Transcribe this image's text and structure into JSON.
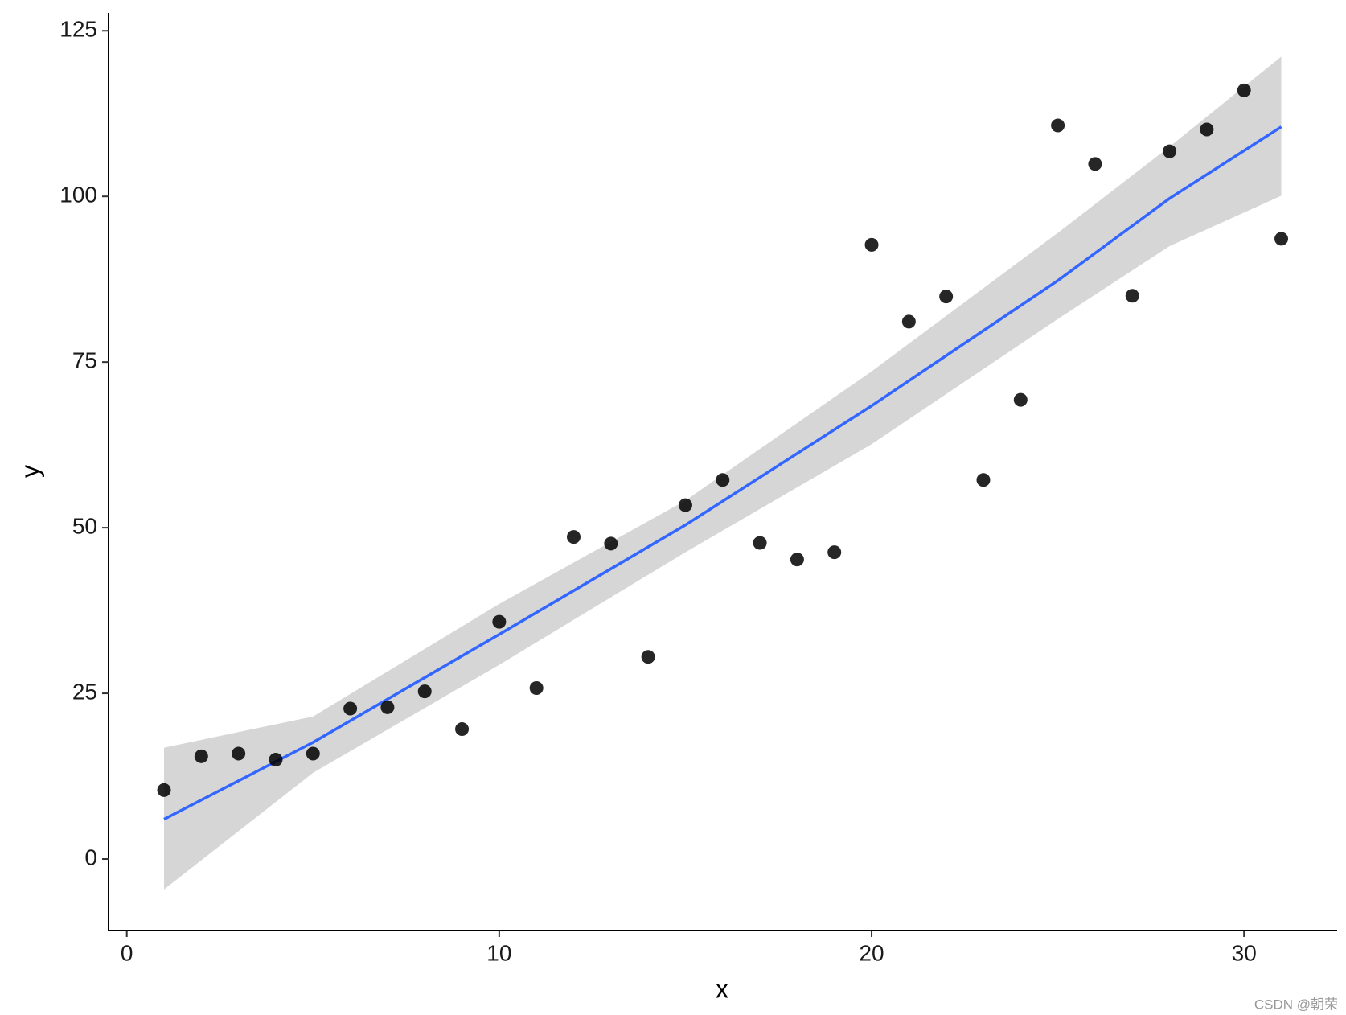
{
  "chart_data": {
    "type": "scatter",
    "x_label": "x",
    "y_label": "y",
    "x": [
      1,
      2,
      3,
      4,
      5,
      6,
      7,
      8,
      9,
      10,
      11,
      12,
      13,
      14,
      15,
      16,
      17,
      18,
      19,
      20,
      21,
      22,
      23,
      24,
      25,
      26,
      27,
      28,
      29,
      30,
      31
    ],
    "values": [
      10.4,
      15.5,
      15.9,
      15.0,
      15.9,
      22.7,
      22.9,
      25.3,
      19.6,
      35.8,
      25.8,
      48.6,
      47.6,
      30.5,
      53.4,
      57.2,
      47.7,
      45.2,
      46.3,
      92.7,
      81.1,
      84.9,
      57.2,
      69.3,
      110.7,
      104.9,
      85.0,
      106.8,
      110.1,
      116.0,
      93.6
    ],
    "color": "#000000",
    "smooth": {
      "x": [
        1,
        5,
        10,
        15,
        20,
        25,
        28,
        31
      ],
      "values": [
        6.0,
        17.6,
        33.9,
        50.4,
        68.4,
        87.3,
        99.7,
        110.5
      ],
      "lower": [
        -4.6,
        13.0,
        29.3,
        46.3,
        62.6,
        81.5,
        92.5,
        100.1
      ],
      "upper": [
        16.8,
        21.5,
        38.5,
        54.1,
        73.6,
        94.5,
        107.5,
        121.1
      ],
      "color": "#3366FF",
      "band_color": "#d6d6d6"
    },
    "xlim": [
      -0.49,
      32.5
    ],
    "ylim": [
      -10.8,
      127.7
    ],
    "xticks": [
      0,
      10,
      20,
      30
    ],
    "yticks": [
      0,
      25,
      50,
      75,
      100,
      125
    ],
    "watermark": "CSDN @朝荣"
  }
}
